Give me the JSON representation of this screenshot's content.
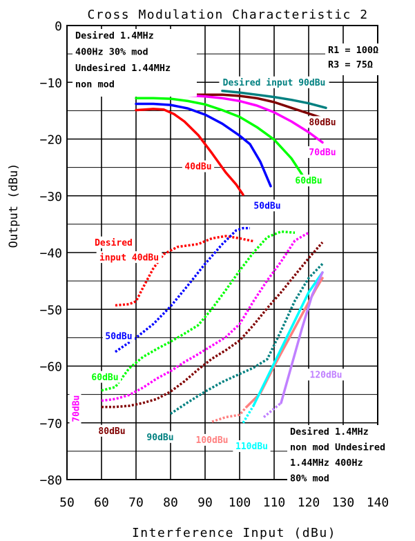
{
  "chart_data": {
    "type": "line",
    "title": "Cross Modulation Characteristic 2",
    "xlabel": "Interference Input (dBu)",
    "ylabel": "Output (dBu)",
    "xlim": [
      50,
      140
    ],
    "ylim": [
      -80,
      0
    ],
    "xticks": [
      50,
      60,
      70,
      80,
      90,
      100,
      110,
      120,
      130,
      140
    ],
    "yticks": [
      0,
      -10,
      -20,
      -30,
      -40,
      -50,
      -60,
      -70,
      -80
    ],
    "grid": true,
    "notes": {
      "top_left": [
        "Desired 1.4MHz",
        "400Hz 30% mod",
        "Undesired 1.44MHz",
        "non mod"
      ],
      "top_right": [
        "R1 = 100Ω",
        "R3 = 75Ω"
      ],
      "bottom_right": [
        "Desired 1.4MHz",
        "non mod Undesired",
        "1.44MHz 400Hz",
        "80% mod"
      ]
    },
    "series": [
      {
        "name": "Desired input 90dBu",
        "color": "#008080",
        "style": "solid",
        "x": [
          95,
          100,
          105,
          110,
          115,
          120,
          125
        ],
        "y": [
          -11.5,
          -11.8,
          -12.2,
          -12.6,
          -13.1,
          -13.7,
          -14.5
        ]
      },
      {
        "name": "80dBu",
        "color": "#800000",
        "style": "solid",
        "x": [
          87,
          95,
          100,
          105,
          110,
          115,
          120,
          124
        ],
        "y": [
          -12.2,
          -12.2,
          -12.4,
          -12.8,
          -13.5,
          -14.5,
          -15.5,
          -16.3
        ]
      },
      {
        "name": "70dBu",
        "color": "#ff00ff",
        "style": "solid",
        "x": [
          77,
          85,
          90,
          95,
          100,
          105,
          110,
          115,
          120,
          124
        ],
        "y": [
          -12.2,
          -12.3,
          -12.5,
          -12.8,
          -13.3,
          -14.1,
          -15.3,
          -16.9,
          -18.8,
          -20.6
        ]
      },
      {
        "name": "60dBu",
        "color": "#00ff00",
        "style": "solid",
        "x": [
          70,
          75,
          80,
          85,
          90,
          95,
          100,
          105,
          110,
          115,
          119
        ],
        "y": [
          -12.8,
          -12.8,
          -12.9,
          -13.3,
          -13.9,
          -14.9,
          -16.1,
          -17.9,
          -20.1,
          -23.4,
          -27.1
        ]
      },
      {
        "name": "50dBu",
        "color": "#0000ff",
        "style": "solid",
        "x": [
          70,
          75,
          80,
          85,
          90,
          95,
          100,
          103,
          106,
          109
        ],
        "y": [
          -13.8,
          -13.8,
          -14,
          -14.6,
          -15.7,
          -17.3,
          -19.4,
          -20.9,
          -24,
          -28.3
        ]
      },
      {
        "name": "40dBu",
        "color": "#ff0000",
        "style": "solid",
        "x": [
          70,
          75,
          78,
          81,
          84,
          88,
          92,
          96,
          99,
          101
        ],
        "y": [
          -14.9,
          -14.7,
          -14.8,
          -15.6,
          -16.9,
          -19.3,
          -22.5,
          -25.9,
          -28,
          -29.8
        ]
      },
      {
        "name": "Desired input 40dBu",
        "color": "#ff0000",
        "style": "dotted",
        "x": [
          64,
          68,
          70,
          72,
          75,
          78,
          82,
          88,
          92,
          96,
          100,
          104
        ],
        "y": [
          -49.3,
          -49.1,
          -48.6,
          -46.2,
          -42.8,
          -40.3,
          -39,
          -38.5,
          -37.5,
          -37.1,
          -37.5,
          -38
        ]
      },
      {
        "name": "50dBu",
        "color": "#0000ff",
        "style": "dotted",
        "x": [
          64,
          70,
          75,
          80,
          85,
          90,
          95,
          99,
          101,
          103
        ],
        "y": [
          -57.5,
          -55,
          -52.6,
          -49.5,
          -45.8,
          -42,
          -38.5,
          -36.1,
          -35.7,
          -35.7
        ]
      },
      {
        "name": "60dBu",
        "color": "#00ff00",
        "style": "dotted",
        "x": [
          60,
          64,
          68,
          72,
          76,
          80,
          84,
          88,
          92,
          96,
          100,
          104,
          108,
          112,
          116
        ],
        "y": [
          -64.3,
          -63.7,
          -60.4,
          -58.4,
          -57,
          -55.7,
          -54.3,
          -52.8,
          -49.9,
          -46.6,
          -43.2,
          -40,
          -37.3,
          -36.3,
          -36.5
        ]
      },
      {
        "name": "70dBu",
        "color": "#ff00ff",
        "style": "dotted",
        "x": [
          60,
          64,
          68,
          72,
          76,
          80,
          84,
          88,
          92,
          96,
          100,
          104,
          108,
          112,
          116,
          120
        ],
        "y": [
          -66.1,
          -65.8,
          -65.1,
          -63.8,
          -62.2,
          -60.9,
          -59.3,
          -57.9,
          -56.4,
          -54.9,
          -52.6,
          -48.6,
          -44.9,
          -41.6,
          -37.9,
          -36.5
        ]
      },
      {
        "name": "80dBu",
        "color": "#800000",
        "style": "dotted",
        "x": [
          60,
          64,
          68,
          72,
          76,
          80,
          84,
          88,
          92,
          96,
          100,
          104,
          108,
          112,
          116,
          120,
          124
        ],
        "y": [
          -67.2,
          -67.2,
          -67,
          -66.5,
          -65.8,
          -64.5,
          -62.7,
          -60.6,
          -58.7,
          -57.2,
          -55.5,
          -52.8,
          -49.8,
          -47,
          -44,
          -41,
          -38.2
        ]
      },
      {
        "name": "90dBu",
        "color": "#008080",
        "style": "dotted",
        "x": [
          80,
          85,
          90,
          95,
          100,
          104,
          108,
          112,
          116,
          120,
          124
        ],
        "y": [
          -68.4,
          -66.4,
          -64.5,
          -62.8,
          -61.4,
          -60.3,
          -58.8,
          -53.8,
          -48.5,
          -44.5,
          -42
        ]
      },
      {
        "name": "100dBu",
        "color": "#ff8080",
        "style": "dotted",
        "x": [
          92,
          96,
          100,
          102
        ],
        "y": [
          -69.8,
          -69,
          -68.6,
          -67.2
        ]
      },
      {
        "name": "100dBu",
        "color": "#ff8080",
        "style": "solid",
        "x": [
          102,
          106,
          110,
          114,
          118,
          122,
          124
        ],
        "y": [
          -67.2,
          -64.8,
          -60,
          -55.5,
          -51,
          -46.5,
          -44.5
        ]
      },
      {
        "name": "110dBu",
        "color": "#00ffff",
        "style": "dotted",
        "x": [
          101,
          104
        ],
        "y": [
          -70,
          -67
        ]
      },
      {
        "name": "110dBu",
        "color": "#00ffff",
        "style": "solid",
        "x": [
          104,
          108,
          112,
          116,
          120,
          124
        ],
        "y": [
          -67,
          -62,
          -57,
          -52,
          -47,
          -43.5
        ]
      },
      {
        "name": "120dBu",
        "color": "#c080ff",
        "style": "dotted",
        "x": [
          107,
          110,
          112
        ],
        "y": [
          -69,
          -67.5,
          -66.5
        ]
      },
      {
        "name": "120dBu",
        "color": "#c080ff",
        "style": "solid",
        "x": [
          112,
          115,
          118,
          121,
          124
        ],
        "y": [
          -66.5,
          -60,
          -53.5,
          -47.5,
          -43.5
        ]
      }
    ],
    "curve_labels": [
      {
        "text": "Desired input 90dBu",
        "color": "#008080",
        "x": 110,
        "y": -10
      },
      {
        "text": "80dBu",
        "color": "#800000",
        "x": 124,
        "y": -17
      },
      {
        "text": "70dBu",
        "color": "#ff00ff",
        "x": 124,
        "y": -22.3
      },
      {
        "text": "60dBu",
        "color": "#00ff00",
        "x": 120,
        "y": -27.3
      },
      {
        "text": "50dBu",
        "color": "#0000ff",
        "x": 108,
        "y": -31.7
      },
      {
        "text": "40dBu",
        "color": "#ff0000",
        "x": 88,
        "y": -24.8
      },
      {
        "text": "Desired",
        "color": "#ff0000",
        "x": 63.5,
        "y": -38.2
      },
      {
        "text": "input 40dBu",
        "color": "#ff0000",
        "x": 68,
        "y": -40.8
      },
      {
        "text": "50dBu",
        "color": "#0000ff",
        "x": 65,
        "y": -54.7
      },
      {
        "text": "60dBu",
        "color": "#00ff00",
        "x": 61,
        "y": -61.9
      },
      {
        "text": "80dBu",
        "color": "#800000",
        "x": 63,
        "y": -71.4
      },
      {
        "text": "90dBu",
        "color": "#008080",
        "x": 77,
        "y": -72.5
      },
      {
        "text": "100dBu",
        "color": "#ff8080",
        "x": 92,
        "y": -73
      },
      {
        "text": "110dBu",
        "color": "#00ffff",
        "x": 103.5,
        "y": -74.1
      },
      {
        "text": "120dBu",
        "color": "#c080ff",
        "x": 125,
        "y": -61.5
      }
    ],
    "rotated_label": {
      "text": "70dBu",
      "color": "#ff00ff",
      "x": 52.5,
      "y": -67.5
    }
  }
}
